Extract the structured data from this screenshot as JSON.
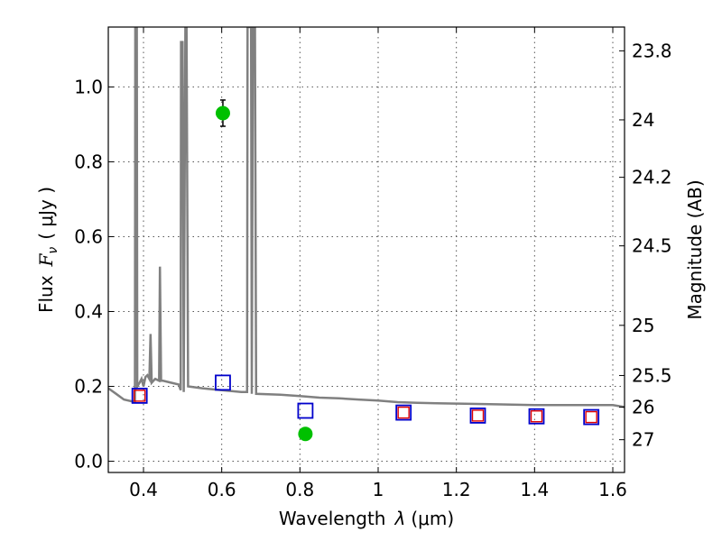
{
  "chart_data": {
    "type": "scatter",
    "xlabel_text": "Wavelength",
    "xlabel_symbol": "λ",
    "xlabel_unit": "(μm)",
    "ylabel_text": "Flux",
    "ylabel_symbol": "F",
    "ylabel_subscript": "ν",
    "ylabel_unit": "( μJy )",
    "y2label": "Magnitude (AB)",
    "xlim": [
      0.31,
      1.63
    ],
    "ylim": [
      -0.03,
      1.16
    ],
    "grid": true,
    "x_ticks": [
      0.4,
      0.6,
      0.8,
      1.0,
      1.2,
      1.4,
      1.6
    ],
    "x_tick_labels": [
      "0.4",
      "0.6",
      "0.8",
      "1",
      "1.2",
      "1.4",
      "1.6"
    ],
    "y_ticks": [
      0.0,
      0.2,
      0.4,
      0.6,
      0.8,
      1.0
    ],
    "y_tick_labels": [
      "0.0",
      "0.2",
      "0.4",
      "0.6",
      "0.8",
      "1.0"
    ],
    "y2_ticks": [
      23.8,
      24,
      24.2,
      24.5,
      25,
      25.5,
      26,
      27
    ],
    "y2_tick_labels": [
      "23.8",
      "24",
      "24.2",
      "24.5",
      "25",
      "25.5",
      "26",
      "27"
    ],
    "series": [
      {
        "name": "model spectrum",
        "kind": "line",
        "color": "#808080",
        "points": [
          [
            0.31,
            0.195
          ],
          [
            0.33,
            0.18
          ],
          [
            0.35,
            0.165
          ],
          [
            0.37,
            0.16
          ],
          [
            0.378,
            0.16
          ],
          [
            0.379,
            1.16
          ],
          [
            0.383,
            1.16
          ],
          [
            0.384,
            0.2
          ],
          [
            0.39,
            0.21
          ],
          [
            0.395,
            0.22
          ],
          [
            0.4,
            0.2
          ],
          [
            0.405,
            0.225
          ],
          [
            0.41,
            0.23
          ],
          [
            0.415,
            0.22
          ],
          [
            0.418,
            0.34
          ],
          [
            0.421,
            0.21
          ],
          [
            0.43,
            0.22
          ],
          [
            0.44,
            0.215
          ],
          [
            0.442,
            0.52
          ],
          [
            0.445,
            0.215
          ],
          [
            0.45,
            0.215
          ],
          [
            0.47,
            0.21
          ],
          [
            0.49,
            0.205
          ],
          [
            0.495,
            0.19
          ],
          [
            0.496,
            1.12
          ],
          [
            0.5,
            1.12
          ],
          [
            0.503,
            0.185
          ],
          [
            0.507,
            1.16
          ],
          [
            0.51,
            1.16
          ],
          [
            0.514,
            0.2
          ],
          [
            0.55,
            0.195
          ],
          [
            0.6,
            0.19
          ],
          [
            0.65,
            0.185
          ],
          [
            0.665,
            0.185
          ],
          [
            0.666,
            1.16
          ],
          [
            0.675,
            1.16
          ],
          [
            0.677,
            0.18
          ],
          [
            0.68,
            1.16
          ],
          [
            0.685,
            1.16
          ],
          [
            0.688,
            0.18
          ],
          [
            0.75,
            0.178
          ],
          [
            0.8,
            0.174
          ],
          [
            0.85,
            0.17
          ],
          [
            0.9,
            0.168
          ],
          [
            0.95,
            0.165
          ],
          [
            1.0,
            0.162
          ],
          [
            1.05,
            0.158
          ],
          [
            1.1,
            0.156
          ],
          [
            1.15,
            0.155
          ],
          [
            1.2,
            0.154
          ],
          [
            1.3,
            0.152
          ],
          [
            1.4,
            0.15
          ],
          [
            1.5,
            0.15
          ],
          [
            1.6,
            0.15
          ],
          [
            1.63,
            0.145
          ]
        ]
      },
      {
        "name": "observed photometry",
        "kind": "points",
        "marker": "circle",
        "color": "#00c000",
        "points": [
          {
            "x": 0.603,
            "y": 0.93,
            "err": 0.035
          },
          {
            "x": 0.814,
            "y": 0.073,
            "err": 0.012
          }
        ]
      },
      {
        "name": "model photometry",
        "kind": "points",
        "marker": "open-square",
        "color": "#0000cc",
        "points": [
          {
            "x": 0.39,
            "y": 0.175
          },
          {
            "x": 0.603,
            "y": 0.21
          },
          {
            "x": 0.814,
            "y": 0.135
          },
          {
            "x": 1.065,
            "y": 0.13
          },
          {
            "x": 1.255,
            "y": 0.122
          },
          {
            "x": 1.405,
            "y": 0.12
          },
          {
            "x": 1.545,
            "y": 0.118
          }
        ]
      },
      {
        "name": "model photometry (red)",
        "kind": "points",
        "marker": "open-square",
        "color": "#e00000",
        "points": [
          {
            "x": 0.39,
            "y": 0.175
          },
          {
            "x": 1.065,
            "y": 0.13
          },
          {
            "x": 1.255,
            "y": 0.122
          },
          {
            "x": 1.405,
            "y": 0.12
          },
          {
            "x": 1.545,
            "y": 0.118
          }
        ]
      }
    ]
  }
}
